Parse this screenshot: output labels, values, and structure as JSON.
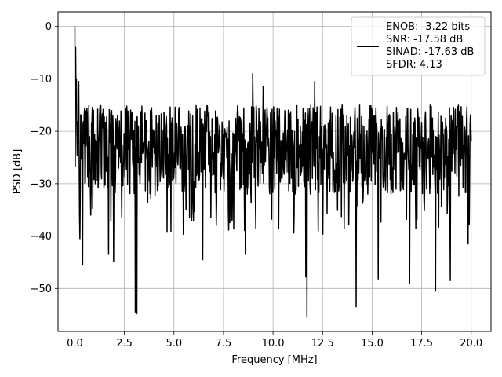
{
  "chart_data": {
    "type": "line",
    "xlabel": "Frequency [MHz]",
    "ylabel": "PSD [dB]",
    "xlim": [
      -0.85,
      21.0
    ],
    "ylim": [
      -58.2,
      2.8
    ],
    "xticks": [
      0.0,
      2.5,
      5.0,
      7.5,
      10.0,
      12.5,
      15.0,
      17.5,
      20.0
    ],
    "xtick_labels": [
      "0.0",
      "2.5",
      "5.0",
      "7.5",
      "10.0",
      "12.5",
      "15.0",
      "17.5",
      "20.0"
    ],
    "yticks": [
      0,
      -10,
      -20,
      -30,
      -40,
      -50
    ],
    "ytick_labels": [
      "0",
      "−10",
      "−20",
      "−30",
      "−40",
      "−50"
    ],
    "grid": true,
    "legend": {
      "placement": "top-right",
      "lines": [
        "ENOB: -3.22 bits",
        "SNR: -17.58 dB",
        "SINAD: -17.63 dB",
        "SFDR: 4.13"
      ]
    },
    "series": [
      {
        "color": "#000000",
        "x_range": [
          0.0,
          20.0
        ],
        "n_points": 1024,
        "noise_floor": {
          "mean": -23.5,
          "upper_typical": -15.0,
          "lower_typical": -32.0
        },
        "peaks": [
          {
            "x": 0.0,
            "y": 0.0
          },
          {
            "x": 0.04,
            "y": -4.0
          },
          {
            "x": 0.08,
            "y": -10.0
          },
          {
            "x": 0.2,
            "y": -10.5
          },
          {
            "x": 8.98,
            "y": -9.0
          },
          {
            "x": 9.5,
            "y": -11.5
          },
          {
            "x": 12.1,
            "y": -10.5
          }
        ],
        "dips": [
          {
            "x": 0.25,
            "y": -40.5
          },
          {
            "x": 0.4,
            "y": -45.5
          },
          {
            "x": 1.7,
            "y": -43.5
          },
          {
            "x": 1.95,
            "y": -44.8
          },
          {
            "x": 3.05,
            "y": -54.5
          },
          {
            "x": 3.12,
            "y": -54.8
          },
          {
            "x": 6.45,
            "y": -44.5
          },
          {
            "x": 8.6,
            "y": -43.5
          },
          {
            "x": 11.65,
            "y": -47.8
          },
          {
            "x": 11.72,
            "y": -55.5
          },
          {
            "x": 12.1,
            "y": -48.5
          },
          {
            "x": 14.2,
            "y": -53.5
          },
          {
            "x": 15.3,
            "y": -48.2
          },
          {
            "x": 16.9,
            "y": -49.0
          },
          {
            "x": 18.2,
            "y": -50.5
          },
          {
            "x": 18.95,
            "y": -48.5
          },
          {
            "x": 19.85,
            "y": -41.5
          }
        ]
      }
    ]
  }
}
